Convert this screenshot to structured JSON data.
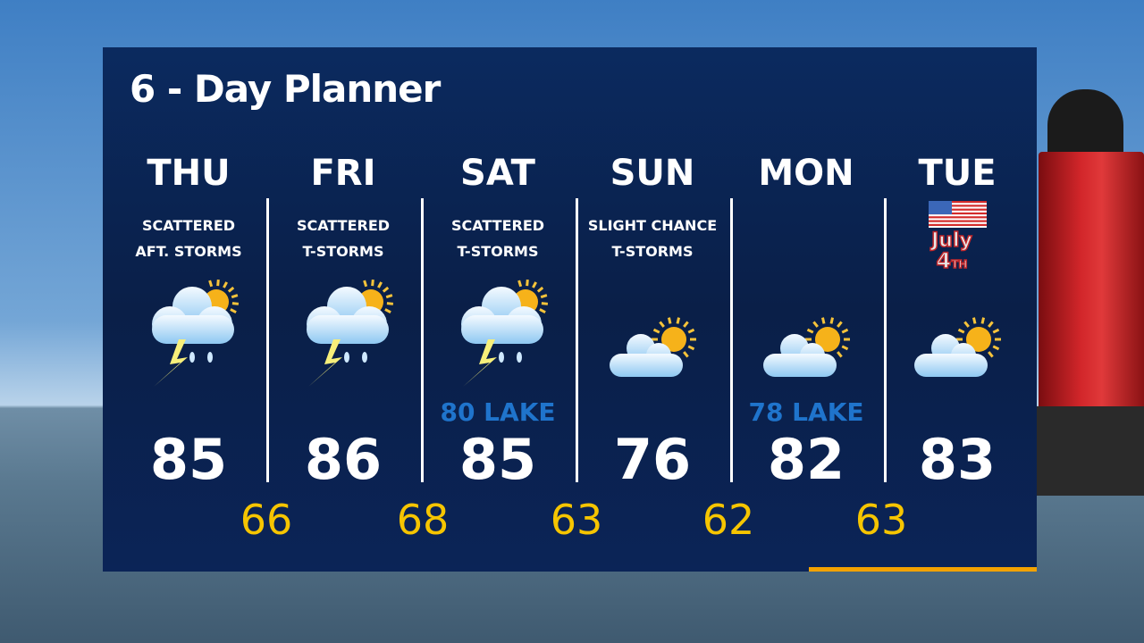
{
  "title": "6 - Day Planner",
  "colors": {
    "panel": "#0b2457",
    "low": "#f6c500",
    "lake": "#1f74cc",
    "accent_bar": "#f3a200"
  },
  "days": [
    {
      "day": "THU",
      "desc1": "SCATTERED",
      "desc2": "AFT. STORMS",
      "icon": "storm-sun-icon",
      "high": "85",
      "lake": ""
    },
    {
      "day": "FRI",
      "desc1": "SCATTERED",
      "desc2": "T-STORMS",
      "icon": "storm-sun-icon",
      "high": "86",
      "lake": ""
    },
    {
      "day": "SAT",
      "desc1": "SCATTERED",
      "desc2": "T-STORMS",
      "icon": "storm-sun-icon",
      "high": "85",
      "lake": "80 LAKE"
    },
    {
      "day": "SUN",
      "desc1": "SLIGHT CHANCE",
      "desc2": "T-STORMS",
      "icon": "partly-cloudy-icon",
      "high": "76",
      "lake": ""
    },
    {
      "day": "MON",
      "desc1": "",
      "desc2": "",
      "icon": "partly-cloudy-icon",
      "high": "82",
      "lake": "78 LAKE"
    },
    {
      "day": "TUE",
      "desc1": "",
      "desc2": "",
      "icon": "partly-cloudy-icon",
      "high": "83",
      "lake": "",
      "badge": "July 4TH"
    }
  ],
  "lows": [
    "66",
    "68",
    "63",
    "62",
    "63"
  ]
}
